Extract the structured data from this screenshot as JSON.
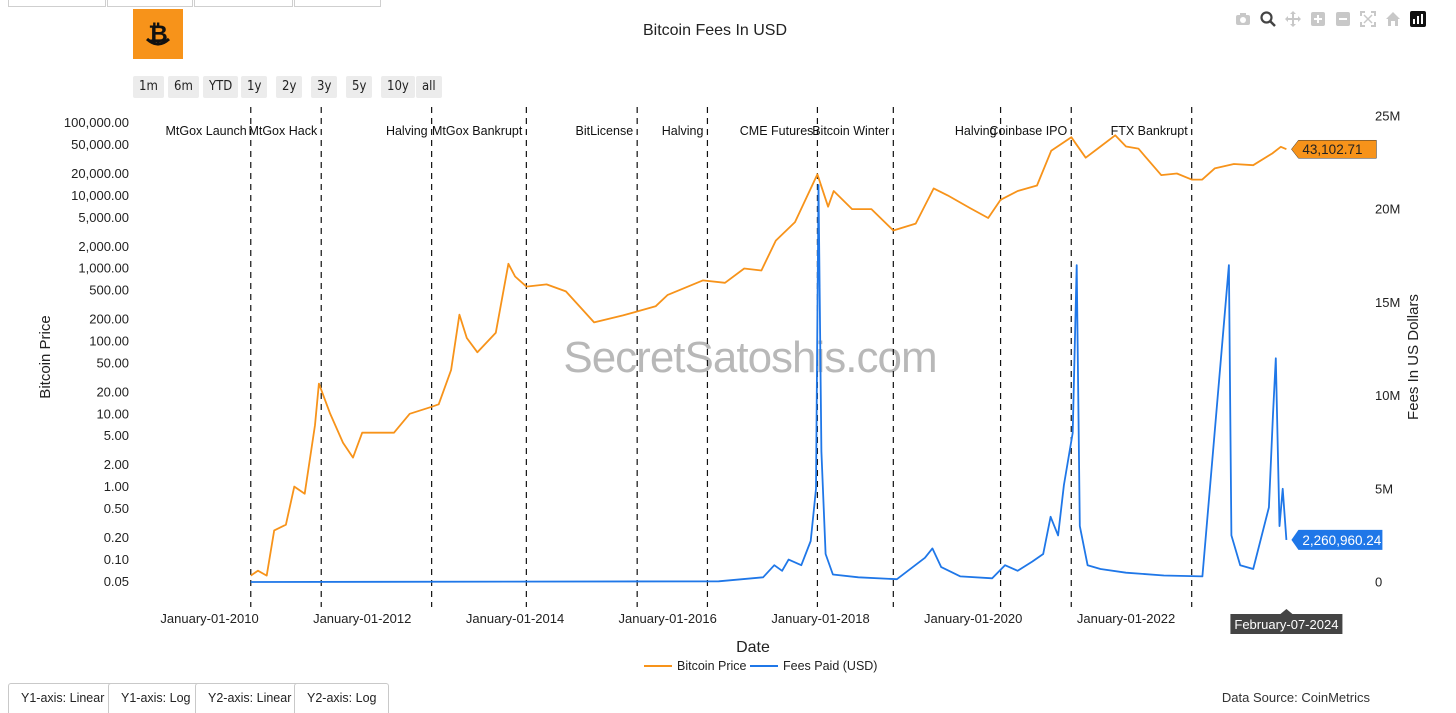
{
  "toolbar": {
    "range_buttons": [
      "1m",
      "6m",
      "YTD",
      "1y",
      "2y",
      "3y",
      "5y",
      "10y",
      "all"
    ],
    "icons": [
      "camera-icon",
      "zoom-icon",
      "pan-icon",
      "zoom-in-icon",
      "zoom-out-icon",
      "autoscale-icon",
      "reset-home-icon",
      "plotly-logo-icon"
    ]
  },
  "bottom_tabs": [
    "Y1-axis: Linear",
    "Y1-axis: Log",
    "Y2-axis: Linear",
    "Y2-axis: Log"
  ],
  "data_source": "Data Source: CoinMetrics",
  "watermark": "SecretSatoshis.com",
  "colors": {
    "btc": "#f7931a",
    "fees": "#1f77e8",
    "logo_bg": "#f7931a"
  },
  "chart_data": {
    "type": "line",
    "title": "Bitcoin Fees In USD",
    "xlabel": "Date",
    "y1label": "Bitcoin Price",
    "y2label": "Fees In US Dollars",
    "y1_scale": "log",
    "y2_scale": "linear",
    "y1_ticks": [
      0.05,
      0.1,
      0.2,
      0.5,
      1,
      2,
      5,
      10,
      20,
      50,
      100,
      200,
      500,
      1000,
      2000,
      5000,
      10000,
      20000,
      50000,
      100000
    ],
    "y1_tick_labels": [
      "0.05",
      "0.10",
      "0.20",
      "0.50",
      "1.00",
      "2.00",
      "5.00",
      "10.00",
      "20.00",
      "50.00",
      "100.00",
      "200.00",
      "500.00",
      "1,000.00",
      "2,000.00",
      "5,000.00",
      "10,000.00",
      "20,000.00",
      "50,000.00",
      "100,000.00"
    ],
    "y1_range": [
      0.038,
      140000
    ],
    "y2_ticks": [
      0,
      5000000,
      10000000,
      15000000,
      20000000,
      25000000
    ],
    "y2_tick_labels": [
      "0",
      "5M",
      "10M",
      "15M",
      "20M",
      "25M"
    ],
    "y2_range": [
      0,
      25000000
    ],
    "x_range": [
      "2009-04-15",
      "2024-12-31"
    ],
    "x_ticks": [
      "2010-01-01",
      "2012-01-01",
      "2014-01-01",
      "2016-01-01",
      "2018-01-01",
      "2020-01-01",
      "2022-01-01"
    ],
    "x_tick_labels": [
      "January-01-2010",
      "January-01-2012",
      "January-01-2014",
      "January-01-2016",
      "January-01-2018",
      "January-01-2020",
      "January-01-2022"
    ],
    "events": [
      {
        "date": "2010-07-17",
        "label": "MtGox Launch"
      },
      {
        "date": "2011-06-19",
        "label": "MtGox Hack"
      },
      {
        "date": "2012-11-28",
        "label": "Halving"
      },
      {
        "date": "2014-02-24",
        "label": "MtGox Bankrupt"
      },
      {
        "date": "2015-08-08",
        "label": "BitLicense"
      },
      {
        "date": "2016-07-09",
        "label": "Halving"
      },
      {
        "date": "2017-12-17",
        "label": "CME Futures"
      },
      {
        "date": "2018-12-15",
        "label": "Bitcoin Winter"
      },
      {
        "date": "2020-05-11",
        "label": "Halving"
      },
      {
        "date": "2021-04-14",
        "label": "Coinbase IPO"
      },
      {
        "date": "2022-11-11",
        "label": "FTX Bankrupt"
      }
    ],
    "series": [
      {
        "name": "Bitcoin Price",
        "axis": "y1",
        "dates": [
          "2010-07-17",
          "2010-08-20",
          "2010-10-01",
          "2010-11-06",
          "2011-01-01",
          "2011-02-10",
          "2011-04-01",
          "2011-05-20",
          "2011-06-08",
          "2011-08-01",
          "2011-10-01",
          "2011-11-18",
          "2012-01-01",
          "2012-06-01",
          "2012-08-15",
          "2012-11-28",
          "2013-01-01",
          "2013-03-01",
          "2013-04-10",
          "2013-05-15",
          "2013-07-05",
          "2013-10-01",
          "2013-11-30",
          "2014-01-01",
          "2014-02-24",
          "2014-06-01",
          "2014-09-01",
          "2015-01-14",
          "2015-06-01",
          "2015-11-04",
          "2016-01-01",
          "2016-06-17",
          "2016-10-01",
          "2017-01-01",
          "2017-03-24",
          "2017-06-01",
          "2017-09-01",
          "2017-12-17",
          "2018-02-06",
          "2018-03-05",
          "2018-06-01",
          "2018-09-01",
          "2018-12-15",
          "2019-04-01",
          "2019-06-26",
          "2019-09-01",
          "2019-12-17",
          "2020-03-13",
          "2020-05-11",
          "2020-08-01",
          "2020-11-01",
          "2021-01-08",
          "2021-04-14",
          "2021-06-22",
          "2021-09-01",
          "2021-11-10",
          "2022-01-01",
          "2022-03-01",
          "2022-06-18",
          "2022-09-01",
          "2022-11-11",
          "2022-12-31",
          "2023-03-01",
          "2023-06-01",
          "2023-09-01",
          "2023-12-01",
          "2024-01-11",
          "2024-02-07"
        ],
        "values": [
          0.06,
          0.07,
          0.06,
          0.25,
          0.3,
          1.0,
          0.8,
          7.0,
          26,
          10,
          4,
          2.5,
          5.5,
          5.5,
          10,
          12.5,
          13.5,
          40,
          230,
          110,
          70,
          130,
          1150,
          770,
          560,
          600,
          480,
          180,
          225,
          300,
          430,
          680,
          630,
          990,
          930,
          2400,
          4300,
          19500,
          7000,
          11500,
          6500,
          6500,
          3300,
          4100,
          12500,
          10000,
          6700,
          4900,
          8700,
          11500,
          13700,
          41000,
          63000,
          33000,
          47000,
          67000,
          47000,
          44000,
          19000,
          20000,
          16500,
          16500,
          23500,
          27000,
          26000,
          37700,
          46500,
          43102.71
        ]
      },
      {
        "name": "Fees Paid (USD)",
        "axis": "y2",
        "dates": [
          "2010-07-17",
          "2016-09-01",
          "2017-04-01",
          "2017-05-25",
          "2017-07-01",
          "2017-08-01",
          "2017-10-01",
          "2017-11-15",
          "2017-12-10",
          "2017-12-22",
          "2018-01-05",
          "2018-01-25",
          "2018-03-01",
          "2018-07-01",
          "2019-01-01",
          "2019-05-15",
          "2019-06-20",
          "2019-08-01",
          "2019-11-01",
          "2020-04-01",
          "2020-06-01",
          "2020-08-01",
          "2020-10-10",
          "2020-12-01",
          "2021-01-05",
          "2021-02-10",
          "2021-03-10",
          "2021-04-21",
          "2021-05-10",
          "2021-05-25",
          "2021-07-01",
          "2021-09-01",
          "2022-01-01",
          "2022-07-01",
          "2023-01-01",
          "2023-05-08",
          "2023-05-20",
          "2023-07-01",
          "2023-09-01",
          "2023-11-15",
          "2023-12-05",
          "2023-12-18",
          "2024-01-05",
          "2024-01-20",
          "2024-02-07"
        ],
        "values": [
          0,
          40000,
          250000,
          900000,
          600000,
          1200000,
          900000,
          2200000,
          5000000,
          21300000,
          7000000,
          1500000,
          400000,
          250000,
          150000,
          1300000,
          1800000,
          800000,
          300000,
          200000,
          900000,
          600000,
          1100000,
          1500000,
          3500000,
          2500000,
          5200000,
          8000000,
          17000000,
          3000000,
          900000,
          700000,
          500000,
          350000,
          300000,
          17000000,
          2500000,
          900000,
          700000,
          4000000,
          9000000,
          12000000,
          3000000,
          5000000,
          2260960.24
        ]
      }
    ],
    "last_values": {
      "btc": "43,102.71",
      "fees": "2,260,960.24"
    },
    "hover_date_label": "February-07-2024",
    "legend_position": "bottom-center"
  }
}
